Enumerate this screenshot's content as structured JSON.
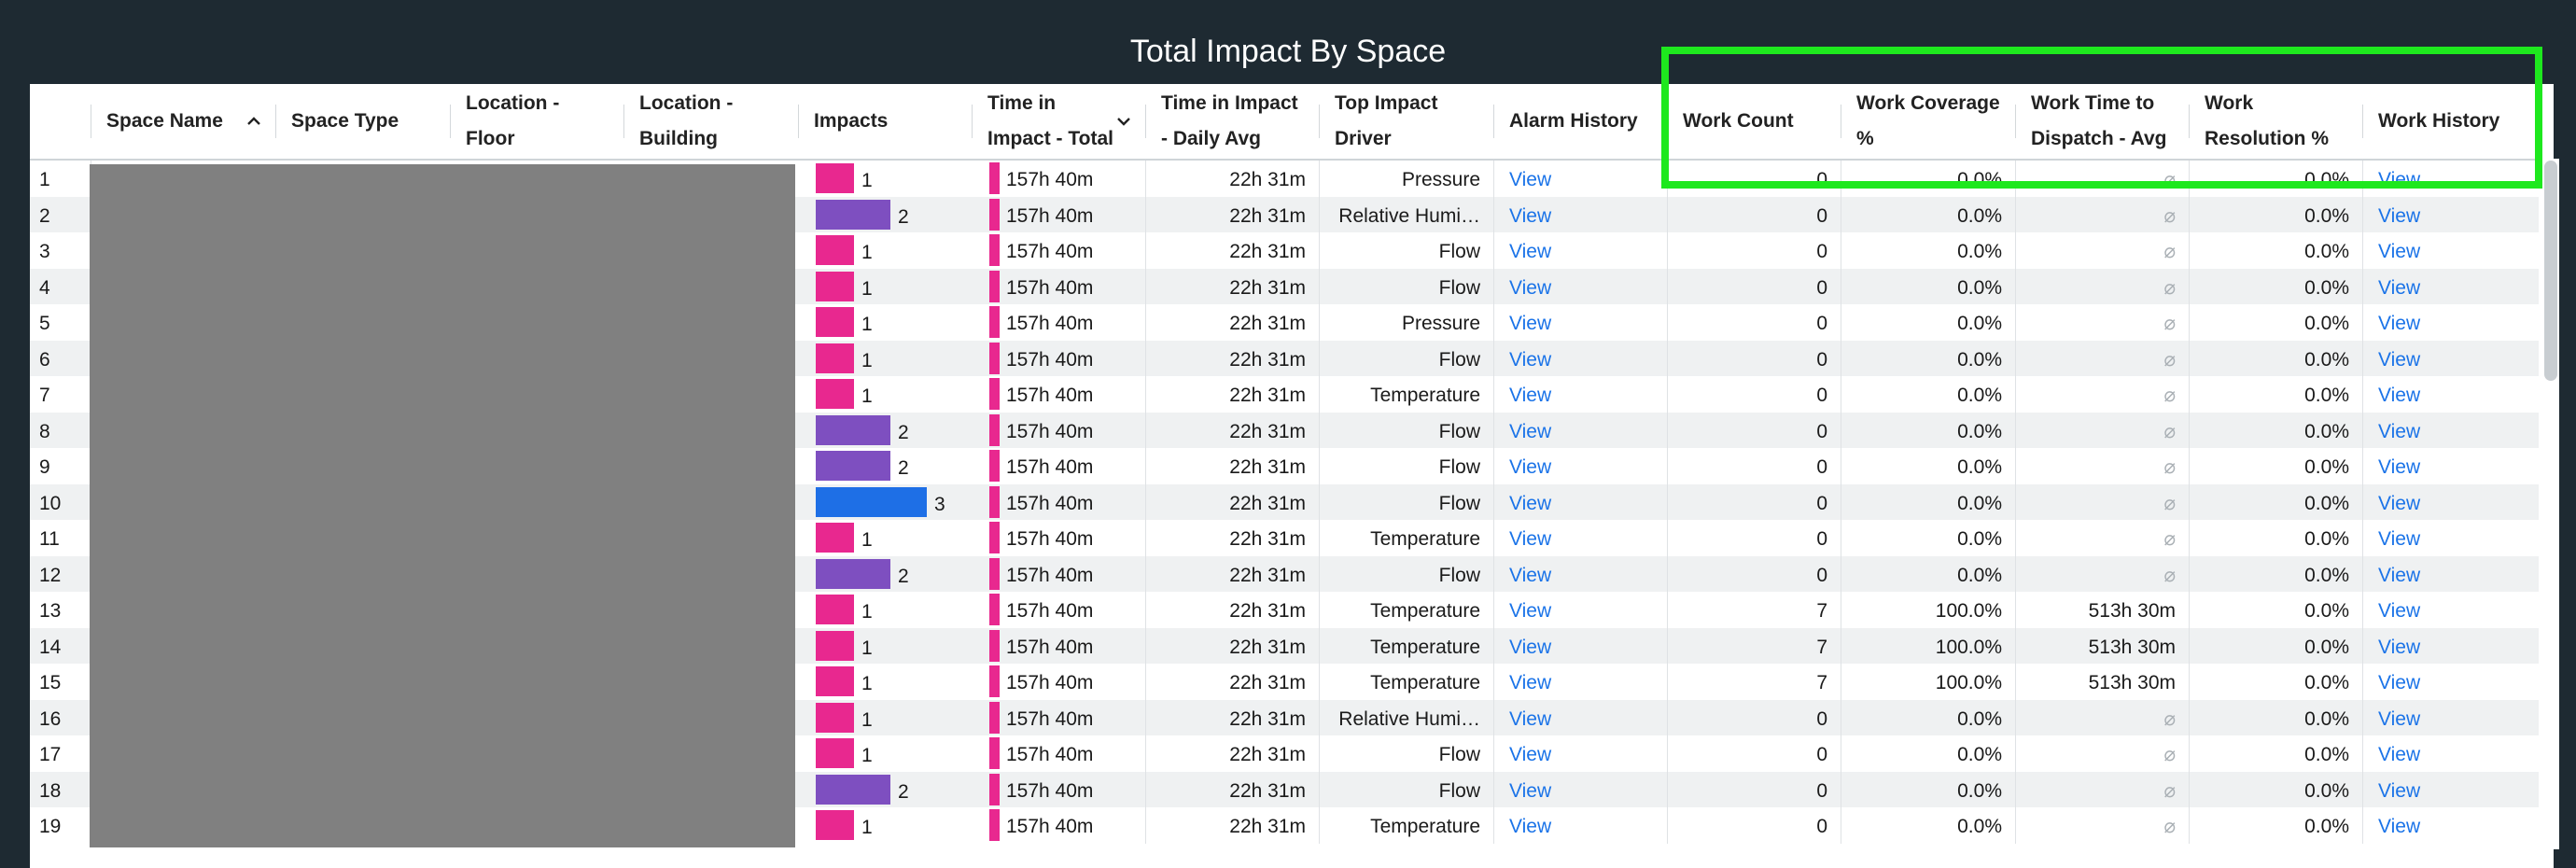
{
  "title": "Total Impact By Space",
  "columns": [
    {
      "label": "Space Name"
    },
    {
      "label": "Space Type"
    },
    {
      "label": "Location - Floor"
    },
    {
      "label": "Location - Building"
    },
    {
      "label": "Impacts"
    },
    {
      "label": "Time in Impact - Total"
    },
    {
      "label": "Time in Impact - Daily Avg"
    },
    {
      "label": "Top Impact Driver"
    },
    {
      "label": "Alarm History"
    },
    {
      "label": "Work Count"
    },
    {
      "label": "Work Coverage %"
    },
    {
      "label": "Work Time to Dispatch - Avg"
    },
    {
      "label": "Work Resolution %"
    },
    {
      "label": "Work History"
    }
  ],
  "sort": {
    "column": "Space Name",
    "direction": "ascending"
  },
  "impact_colors": {
    "1": "#e8288f",
    "2": "#7e4fc0",
    "3": "#1e6fe6"
  },
  "null_symbol": "⌀",
  "rows": [
    {
      "idx": "1",
      "impacts": 1,
      "time_total": "157h 40m",
      "daily_avg": "22h 31m",
      "driver": "Pressure",
      "alarm": "View",
      "work_count": "0",
      "coverage": "0.0%",
      "dispatch": "⌀",
      "resolution": "0.0%",
      "history": "View"
    },
    {
      "idx": "2",
      "impacts": 2,
      "time_total": "157h 40m",
      "daily_avg": "22h 31m",
      "driver": "Relative Humi…",
      "alarm": "View",
      "work_count": "0",
      "coverage": "0.0%",
      "dispatch": "⌀",
      "resolution": "0.0%",
      "history": "View"
    },
    {
      "idx": "3",
      "impacts": 1,
      "time_total": "157h 40m",
      "daily_avg": "22h 31m",
      "driver": "Flow",
      "alarm": "View",
      "work_count": "0",
      "coverage": "0.0%",
      "dispatch": "⌀",
      "resolution": "0.0%",
      "history": "View"
    },
    {
      "idx": "4",
      "impacts": 1,
      "time_total": "157h 40m",
      "daily_avg": "22h 31m",
      "driver": "Flow",
      "alarm": "View",
      "work_count": "0",
      "coverage": "0.0%",
      "dispatch": "⌀",
      "resolution": "0.0%",
      "history": "View"
    },
    {
      "idx": "5",
      "impacts": 1,
      "time_total": "157h 40m",
      "daily_avg": "22h 31m",
      "driver": "Pressure",
      "alarm": "View",
      "work_count": "0",
      "coverage": "0.0%",
      "dispatch": "⌀",
      "resolution": "0.0%",
      "history": "View"
    },
    {
      "idx": "6",
      "impacts": 1,
      "time_total": "157h 40m",
      "daily_avg": "22h 31m",
      "driver": "Flow",
      "alarm": "View",
      "work_count": "0",
      "coverage": "0.0%",
      "dispatch": "⌀",
      "resolution": "0.0%",
      "history": "View"
    },
    {
      "idx": "7",
      "impacts": 1,
      "time_total": "157h 40m",
      "daily_avg": "22h 31m",
      "driver": "Temperature",
      "alarm": "View",
      "work_count": "0",
      "coverage": "0.0%",
      "dispatch": "⌀",
      "resolution": "0.0%",
      "history": "View"
    },
    {
      "idx": "8",
      "impacts": 2,
      "time_total": "157h 40m",
      "daily_avg": "22h 31m",
      "driver": "Flow",
      "alarm": "View",
      "work_count": "0",
      "coverage": "0.0%",
      "dispatch": "⌀",
      "resolution": "0.0%",
      "history": "View"
    },
    {
      "idx": "9",
      "impacts": 2,
      "time_total": "157h 40m",
      "daily_avg": "22h 31m",
      "driver": "Flow",
      "alarm": "View",
      "work_count": "0",
      "coverage": "0.0%",
      "dispatch": "⌀",
      "resolution": "0.0%",
      "history": "View"
    },
    {
      "idx": "10",
      "impacts": 3,
      "time_total": "157h 40m",
      "daily_avg": "22h 31m",
      "driver": "Flow",
      "alarm": "View",
      "work_count": "0",
      "coverage": "0.0%",
      "dispatch": "⌀",
      "resolution": "0.0%",
      "history": "View"
    },
    {
      "idx": "11",
      "impacts": 1,
      "time_total": "157h 40m",
      "daily_avg": "22h 31m",
      "driver": "Temperature",
      "alarm": "View",
      "work_count": "0",
      "coverage": "0.0%",
      "dispatch": "⌀",
      "resolution": "0.0%",
      "history": "View"
    },
    {
      "idx": "12",
      "impacts": 2,
      "time_total": "157h 40m",
      "daily_avg": "22h 31m",
      "driver": "Flow",
      "alarm": "View",
      "work_count": "0",
      "coverage": "0.0%",
      "dispatch": "⌀",
      "resolution": "0.0%",
      "history": "View"
    },
    {
      "idx": "13",
      "impacts": 1,
      "time_total": "157h 40m",
      "daily_avg": "22h 31m",
      "driver": "Temperature",
      "alarm": "View",
      "work_count": "7",
      "coverage": "100.0%",
      "dispatch": "513h 30m",
      "resolution": "0.0%",
      "history": "View"
    },
    {
      "idx": "14",
      "impacts": 1,
      "time_total": "157h 40m",
      "daily_avg": "22h 31m",
      "driver": "Temperature",
      "alarm": "View",
      "work_count": "7",
      "coverage": "100.0%",
      "dispatch": "513h 30m",
      "resolution": "0.0%",
      "history": "View"
    },
    {
      "idx": "15",
      "impacts": 1,
      "time_total": "157h 40m",
      "daily_avg": "22h 31m",
      "driver": "Temperature",
      "alarm": "View",
      "work_count": "7",
      "coverage": "100.0%",
      "dispatch": "513h 30m",
      "resolution": "0.0%",
      "history": "View"
    },
    {
      "idx": "16",
      "impacts": 1,
      "time_total": "157h 40m",
      "daily_avg": "22h 31m",
      "driver": "Relative Humi…",
      "alarm": "View",
      "work_count": "0",
      "coverage": "0.0%",
      "dispatch": "⌀",
      "resolution": "0.0%",
      "history": "View"
    },
    {
      "idx": "17",
      "impacts": 1,
      "time_total": "157h 40m",
      "daily_avg": "22h 31m",
      "driver": "Flow",
      "alarm": "View",
      "work_count": "0",
      "coverage": "0.0%",
      "dispatch": "⌀",
      "resolution": "0.0%",
      "history": "View"
    },
    {
      "idx": "18",
      "impacts": 2,
      "time_total": "157h 40m",
      "daily_avg": "22h 31m",
      "driver": "Flow",
      "alarm": "View",
      "work_count": "0",
      "coverage": "0.0%",
      "dispatch": "⌀",
      "resolution": "0.0%",
      "history": "View"
    },
    {
      "idx": "19",
      "impacts": 1,
      "time_total": "157h 40m",
      "daily_avg": "22h 31m",
      "driver": "Temperature",
      "alarm": "View",
      "work_count": "0",
      "coverage": "0.0%",
      "dispatch": "⌀",
      "resolution": "0.0%",
      "history": "View"
    }
  ]
}
